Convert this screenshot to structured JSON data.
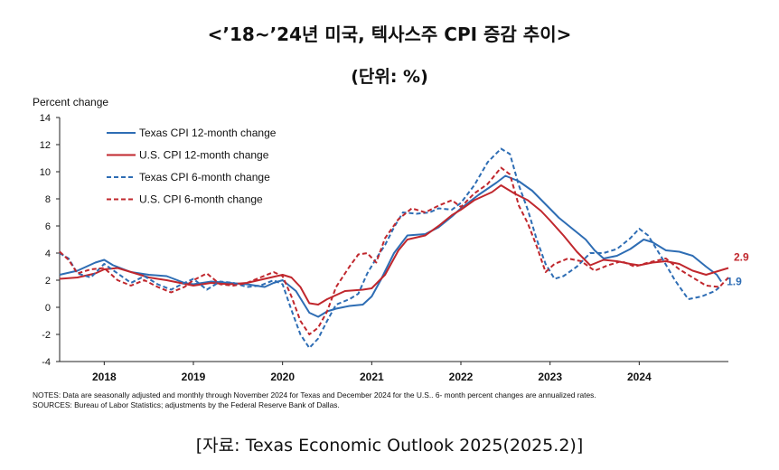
{
  "header": {
    "title": "<’18~’24년 미국, 텍사스주 CPI 증감 추이>",
    "subtitle": "(단위: %)"
  },
  "footer": {
    "source": "[자료: Texas Economic Outlook 2025(2025.2)]"
  },
  "colors": {
    "blue": "#2E6DB4",
    "red": "#C0272D"
  },
  "chart_data": {
    "type": "line",
    "ylabel": "Percent change",
    "ylim": [
      -4,
      14
    ],
    "yticks": [
      -4,
      -2,
      0,
      2,
      4,
      6,
      8,
      10,
      12,
      14
    ],
    "xlim": [
      2017.5,
      2025.0
    ],
    "xticks": [
      {
        "label": "2018",
        "value": 2018.0
      },
      {
        "label": "2019",
        "value": 2019.0
      },
      {
        "label": "2020",
        "value": 2020.0
      },
      {
        "label": "2021",
        "value": 2021.0
      },
      {
        "label": "2022",
        "value": 2022.0
      },
      {
        "label": "2023",
        "value": 2023.0
      },
      {
        "label": "2024",
        "value": 2024.0
      }
    ],
    "legend_position": "top-left",
    "grid": false,
    "notes": [
      "NOTES: Data are seasonally adjusted and monthly through November 2024 for Texas and December 2024 for the U.S.. 6- month percent changes are annualized rates.",
      "SOURCES: Bureau of Labor Statistics; adjustments by the Federal Reserve Bank of Dallas."
    ],
    "end_labels": [
      {
        "text": "2.9",
        "series": "U.S. CPI 12-month change"
      },
      {
        "text": "1.9",
        "series": "Texas CPI 12-month change"
      }
    ],
    "series": [
      {
        "name": "Texas CPI 12-month change",
        "color": "#2E6DB4",
        "dash": false,
        "points": [
          [
            2017.5,
            2.4
          ],
          [
            2017.7,
            2.7
          ],
          [
            2017.9,
            3.3
          ],
          [
            2018.0,
            3.5
          ],
          [
            2018.1,
            3.1
          ],
          [
            2018.3,
            2.6
          ],
          [
            2018.5,
            2.4
          ],
          [
            2018.7,
            2.3
          ],
          [
            2018.9,
            1.8
          ],
          [
            2019.0,
            1.7
          ],
          [
            2019.2,
            1.9
          ],
          [
            2019.4,
            1.8
          ],
          [
            2019.6,
            1.7
          ],
          [
            2019.8,
            1.5
          ],
          [
            2019.9,
            1.8
          ],
          [
            2020.0,
            2.0
          ],
          [
            2020.15,
            1.2
          ],
          [
            2020.3,
            -0.4
          ],
          [
            2020.4,
            -0.7
          ],
          [
            2020.5,
            -0.3
          ],
          [
            2020.6,
            -0.1
          ],
          [
            2020.75,
            0.1
          ],
          [
            2020.9,
            0.2
          ],
          [
            2021.0,
            0.8
          ],
          [
            2021.1,
            2.0
          ],
          [
            2021.25,
            4.0
          ],
          [
            2021.4,
            5.3
          ],
          [
            2021.6,
            5.4
          ],
          [
            2021.75,
            5.9
          ],
          [
            2021.9,
            6.7
          ],
          [
            2022.0,
            7.3
          ],
          [
            2022.2,
            8.3
          ],
          [
            2022.4,
            9.2
          ],
          [
            2022.5,
            9.7
          ],
          [
            2022.65,
            9.3
          ],
          [
            2022.8,
            8.6
          ],
          [
            2022.95,
            7.6
          ],
          [
            2023.1,
            6.6
          ],
          [
            2023.25,
            5.8
          ],
          [
            2023.4,
            5.0
          ],
          [
            2023.5,
            4.2
          ],
          [
            2023.6,
            3.6
          ],
          [
            2023.75,
            3.8
          ],
          [
            2023.9,
            4.3
          ],
          [
            2024.05,
            5.0
          ],
          [
            2024.15,
            4.8
          ],
          [
            2024.3,
            4.2
          ],
          [
            2024.45,
            4.1
          ],
          [
            2024.6,
            3.8
          ],
          [
            2024.75,
            3.0
          ],
          [
            2024.87,
            2.4
          ],
          [
            2024.92,
            1.9
          ]
        ]
      },
      {
        "name": "U.S. CPI 12-month change",
        "color": "#C0272D",
        "dash": false,
        "points": [
          [
            2017.5,
            2.1
          ],
          [
            2017.7,
            2.2
          ],
          [
            2017.9,
            2.5
          ],
          [
            2018.0,
            2.8
          ],
          [
            2018.15,
            2.9
          ],
          [
            2018.35,
            2.5
          ],
          [
            2018.5,
            2.2
          ],
          [
            2018.7,
            2.0
          ],
          [
            2018.85,
            1.8
          ],
          [
            2019.0,
            1.6
          ],
          [
            2019.2,
            1.8
          ],
          [
            2019.4,
            1.7
          ],
          [
            2019.6,
            1.8
          ],
          [
            2019.8,
            2.1
          ],
          [
            2020.0,
            2.4
          ],
          [
            2020.1,
            2.2
          ],
          [
            2020.2,
            1.5
          ],
          [
            2020.3,
            0.3
          ],
          [
            2020.4,
            0.2
          ],
          [
            2020.5,
            0.6
          ],
          [
            2020.7,
            1.2
          ],
          [
            2020.9,
            1.3
          ],
          [
            2021.0,
            1.4
          ],
          [
            2021.15,
            2.4
          ],
          [
            2021.3,
            4.2
          ],
          [
            2021.4,
            5.0
          ],
          [
            2021.6,
            5.3
          ],
          [
            2021.75,
            6.0
          ],
          [
            2021.9,
            6.8
          ],
          [
            2022.0,
            7.2
          ],
          [
            2022.15,
            7.9
          ],
          [
            2022.35,
            8.5
          ],
          [
            2022.45,
            9.0
          ],
          [
            2022.6,
            8.4
          ],
          [
            2022.75,
            7.9
          ],
          [
            2022.9,
            7.1
          ],
          [
            2023.0,
            6.4
          ],
          [
            2023.15,
            5.3
          ],
          [
            2023.3,
            4.1
          ],
          [
            2023.45,
            3.1
          ],
          [
            2023.6,
            3.5
          ],
          [
            2023.75,
            3.4
          ],
          [
            2023.9,
            3.2
          ],
          [
            2024.0,
            3.1
          ],
          [
            2024.15,
            3.3
          ],
          [
            2024.3,
            3.4
          ],
          [
            2024.45,
            3.2
          ],
          [
            2024.6,
            2.7
          ],
          [
            2024.75,
            2.4
          ],
          [
            2024.9,
            2.7
          ],
          [
            2025.0,
            2.9
          ]
        ]
      },
      {
        "name": "Texas CPI 6-month change",
        "color": "#2E6DB4",
        "dash": true,
        "points": [
          [
            2017.5,
            4.0
          ],
          [
            2017.6,
            3.6
          ],
          [
            2017.7,
            2.5
          ],
          [
            2017.85,
            2.2
          ],
          [
            2018.0,
            3.2
          ],
          [
            2018.15,
            2.5
          ],
          [
            2018.3,
            1.8
          ],
          [
            2018.45,
            2.3
          ],
          [
            2018.6,
            1.7
          ],
          [
            2018.75,
            1.3
          ],
          [
            2018.9,
            1.8
          ],
          [
            2019.0,
            2.1
          ],
          [
            2019.15,
            1.3
          ],
          [
            2019.3,
            1.9
          ],
          [
            2019.45,
            1.8
          ],
          [
            2019.6,
            1.5
          ],
          [
            2019.75,
            1.6
          ],
          [
            2019.9,
            2.0
          ],
          [
            2020.0,
            1.7
          ],
          [
            2020.1,
            -0.2
          ],
          [
            2020.2,
            -2.0
          ],
          [
            2020.3,
            -3.0
          ],
          [
            2020.4,
            -2.3
          ],
          [
            2020.5,
            -1.0
          ],
          [
            2020.6,
            0.2
          ],
          [
            2020.75,
            0.6
          ],
          [
            2020.85,
            1.0
          ],
          [
            2020.95,
            2.5
          ],
          [
            2021.05,
            3.6
          ],
          [
            2021.15,
            4.6
          ],
          [
            2021.25,
            5.9
          ],
          [
            2021.35,
            7.0
          ],
          [
            2021.5,
            6.9
          ],
          [
            2021.65,
            7.0
          ],
          [
            2021.75,
            7.3
          ],
          [
            2021.9,
            7.2
          ],
          [
            2022.0,
            7.7
          ],
          [
            2022.15,
            9.0
          ],
          [
            2022.3,
            10.7
          ],
          [
            2022.45,
            11.7
          ],
          [
            2022.55,
            11.3
          ],
          [
            2022.65,
            9.0
          ],
          [
            2022.75,
            7.2
          ],
          [
            2022.85,
            5.0
          ],
          [
            2022.95,
            3.2
          ],
          [
            2023.05,
            2.1
          ],
          [
            2023.15,
            2.3
          ],
          [
            2023.3,
            3.0
          ],
          [
            2023.45,
            4.0
          ],
          [
            2023.6,
            4.0
          ],
          [
            2023.75,
            4.3
          ],
          [
            2023.9,
            5.1
          ],
          [
            2024.0,
            5.8
          ],
          [
            2024.1,
            5.3
          ],
          [
            2024.25,
            3.7
          ],
          [
            2024.4,
            2.0
          ],
          [
            2024.55,
            0.6
          ],
          [
            2024.7,
            0.8
          ],
          [
            2024.85,
            1.2
          ],
          [
            2024.92,
            1.6
          ]
        ]
      },
      {
        "name": "U.S. CPI 6-month change",
        "color": "#C0272D",
        "dash": true,
        "points": [
          [
            2017.5,
            4.1
          ],
          [
            2017.6,
            3.5
          ],
          [
            2017.7,
            2.5
          ],
          [
            2017.85,
            2.8
          ],
          [
            2018.0,
            2.9
          ],
          [
            2018.15,
            2.0
          ],
          [
            2018.3,
            1.6
          ],
          [
            2018.45,
            2.0
          ],
          [
            2018.6,
            1.5
          ],
          [
            2018.75,
            1.1
          ],
          [
            2018.9,
            1.5
          ],
          [
            2019.0,
            2.0
          ],
          [
            2019.15,
            2.5
          ],
          [
            2019.3,
            1.7
          ],
          [
            2019.45,
            1.6
          ],
          [
            2019.6,
            1.8
          ],
          [
            2019.75,
            2.2
          ],
          [
            2019.9,
            2.6
          ],
          [
            2020.0,
            2.3
          ],
          [
            2020.1,
            0.8
          ],
          [
            2020.2,
            -1.0
          ],
          [
            2020.3,
            -2.0
          ],
          [
            2020.4,
            -1.5
          ],
          [
            2020.5,
            -0.3
          ],
          [
            2020.6,
            1.5
          ],
          [
            2020.75,
            3.0
          ],
          [
            2020.85,
            3.9
          ],
          [
            2020.95,
            4.0
          ],
          [
            2021.05,
            3.3
          ],
          [
            2021.15,
            5.1
          ],
          [
            2021.3,
            6.5
          ],
          [
            2021.45,
            7.3
          ],
          [
            2021.6,
            7.0
          ],
          [
            2021.75,
            7.5
          ],
          [
            2021.9,
            7.9
          ],
          [
            2022.0,
            7.4
          ],
          [
            2022.15,
            8.4
          ],
          [
            2022.3,
            9.1
          ],
          [
            2022.45,
            10.3
          ],
          [
            2022.55,
            9.8
          ],
          [
            2022.65,
            7.5
          ],
          [
            2022.75,
            6.2
          ],
          [
            2022.85,
            4.5
          ],
          [
            2022.95,
            2.6
          ],
          [
            2023.05,
            3.2
          ],
          [
            2023.2,
            3.6
          ],
          [
            2023.35,
            3.4
          ],
          [
            2023.5,
            2.7
          ],
          [
            2023.65,
            3.1
          ],
          [
            2023.8,
            3.4
          ],
          [
            2023.95,
            3.0
          ],
          [
            2024.1,
            3.3
          ],
          [
            2024.3,
            3.6
          ],
          [
            2024.45,
            2.8
          ],
          [
            2024.6,
            2.2
          ],
          [
            2024.75,
            1.6
          ],
          [
            2024.9,
            1.5
          ],
          [
            2025.0,
            2.2
          ]
        ]
      }
    ]
  }
}
